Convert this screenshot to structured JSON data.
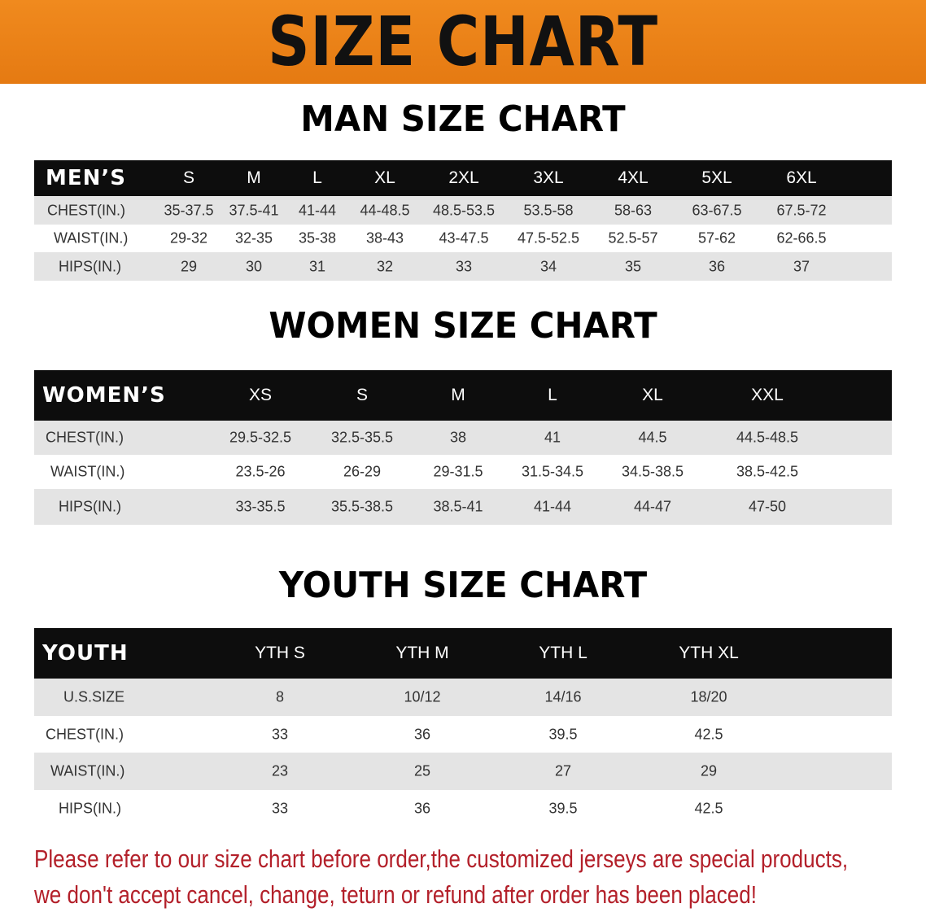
{
  "banner_title": "SIZE CHART",
  "men": {
    "title": "MAN SIZE CHART",
    "header": {
      "label": "MEN’S",
      "sizes": [
        "S",
        "M",
        "L",
        "XL",
        "2XL",
        "3XL",
        "4XL",
        "5XL",
        "6XL"
      ]
    },
    "rows": [
      {
        "label": "CHEST(IN.)",
        "values": [
          "35-37.5",
          "37.5-41",
          "41-44",
          "44-48.5",
          "48.5-53.5",
          "53.5-58",
          "58-63",
          "63-67.5",
          "67.5-72"
        ]
      },
      {
        "label": "WAIST(IN.)",
        "values": [
          "29-32",
          "32-35",
          "35-38",
          "38-43",
          "43-47.5",
          "47.5-52.5",
          "52.5-57",
          "57-62",
          "62-66.5"
        ]
      },
      {
        "label": "HIPS(IN.)",
        "values": [
          "29",
          "30",
          "31",
          "32",
          "33",
          "34",
          "35",
          "36",
          "37"
        ]
      }
    ]
  },
  "women": {
    "title": "WOMEN SIZE CHART",
    "header": {
      "label": "WOMEN’S",
      "sizes": [
        "XS",
        "S",
        "M",
        "L",
        "XL",
        "XXL"
      ]
    },
    "rows": [
      {
        "label": "CHEST(IN.)",
        "values": [
          "29.5-32.5",
          "32.5-35.5",
          "38",
          "41",
          "44.5",
          "44.5-48.5"
        ]
      },
      {
        "label": "WAIST(IN.)",
        "values": [
          "23.5-26",
          "26-29",
          "29-31.5",
          "31.5-34.5",
          "34.5-38.5",
          "38.5-42.5"
        ]
      },
      {
        "label": "HIPS(IN.)",
        "values": [
          "33-35.5",
          "35.5-38.5",
          "38.5-41",
          "41-44",
          "44-47",
          "47-50"
        ]
      }
    ]
  },
  "youth": {
    "title": "YOUTH SIZE CHART",
    "header": {
      "label": "YOUTH",
      "sizes": [
        "YTH S",
        "YTH M",
        "YTH L",
        "YTH XL"
      ]
    },
    "rows": [
      {
        "label": "U.S.SIZE",
        "values": [
          "8",
          "10/12",
          "14/16",
          "18/20"
        ]
      },
      {
        "label": "CHEST(IN.)",
        "values": [
          "33",
          "36",
          "39.5",
          "42.5"
        ]
      },
      {
        "label": "WAIST(IN.)",
        "values": [
          "23",
          "25",
          "27",
          "29"
        ]
      },
      {
        "label": "HIPS(IN.)",
        "values": [
          "33",
          "36",
          "39.5",
          "42.5"
        ]
      }
    ]
  },
  "notice": {
    "line1": "Please refer to our size chart before order,the customized jerseys are special products,",
    "line2": "we don't accept cancel, change, teturn or refund after order has been placed!"
  },
  "colors": {
    "banner": "#ec8418",
    "header_row": "#0d0d0d",
    "stripe": "#e4e4e4",
    "notice": "#b3202a"
  }
}
